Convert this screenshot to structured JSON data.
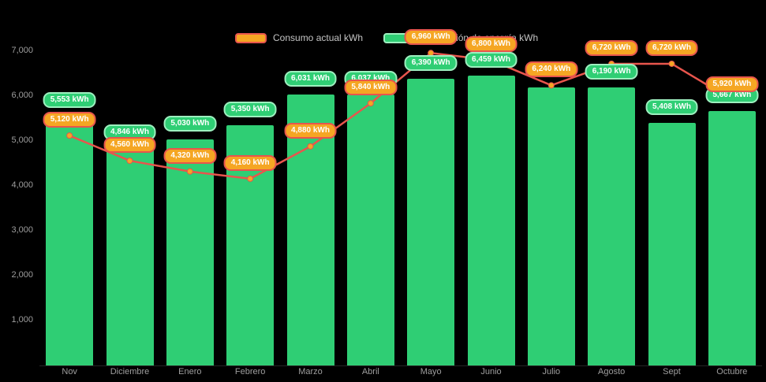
{
  "colors": {
    "background": "#000000",
    "bar_green": "#2fce74",
    "line_red": "#e8554d",
    "badge_orange": "#f5a623",
    "badge_green_border": "#9defbf",
    "axis_text": "#9e9e9e",
    "legend_text": "#c4c4c4"
  },
  "chart_data": {
    "type": "bar+line",
    "title": "",
    "unit": "kWh",
    "categories": [
      "Nov",
      "Diciembre",
      "Enero",
      "Febrero",
      "Marzo",
      "Abril",
      "Mayo",
      "Junio",
      "Julio",
      "Agosto",
      "Sept",
      "Octubre"
    ],
    "series": [
      {
        "name": "Consumo actual kWh",
        "type": "line",
        "color": "#e8554d",
        "marker_color": "#f5a623",
        "values": [
          5120,
          4560,
          4320,
          4160,
          4880,
          5840,
          6960,
          6800,
          6240,
          6720,
          6720,
          5920
        ]
      },
      {
        "name": "Producción de energía kWh",
        "type": "bar",
        "color": "#2fce74",
        "values": [
          5553,
          4846,
          5030,
          5350,
          6031,
          6037,
          6390,
          6459,
          6190,
          6190,
          5408,
          5667
        ],
        "label_visible": [
          true,
          true,
          true,
          true,
          true,
          true,
          true,
          true,
          false,
          true,
          true,
          true
        ]
      }
    ],
    "y_ticks": [
      7000,
      6000,
      5000,
      4000,
      3000,
      2000,
      1000
    ],
    "ylim": [
      0,
      7000
    ],
    "grid": false,
    "legend_position": "top"
  }
}
